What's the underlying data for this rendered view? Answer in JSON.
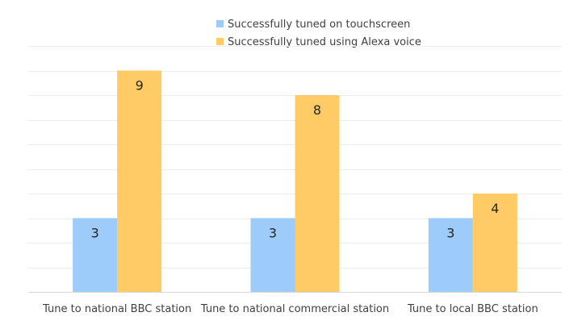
{
  "chart_data": {
    "type": "bar",
    "categories": [
      "Tune to national BBC station",
      "Tune to national commercial station",
      "Tune to local BBC station"
    ],
    "series": [
      {
        "name": "Successfully tuned on touchscreen",
        "values": [
          3,
          3,
          3
        ],
        "color": "#9dcbfa"
      },
      {
        "name": "Successfully tuned using Alexa voice",
        "values": [
          9,
          8,
          4
        ],
        "color": "#ffcb66"
      }
    ],
    "ylim": [
      0,
      10
    ],
    "grid": true,
    "legend": "top-center",
    "data_labels": true
  }
}
